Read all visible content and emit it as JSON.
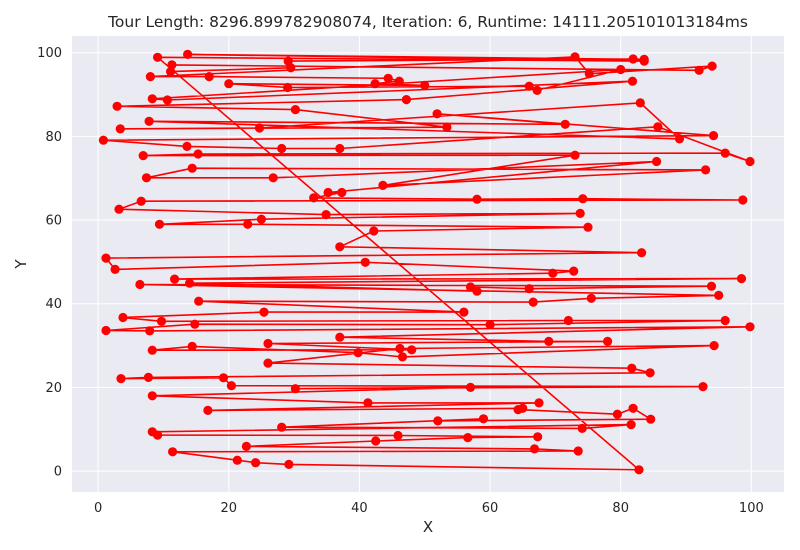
{
  "chart_data": {
    "type": "line",
    "title": "Tour Length: 8296.899782908074, Iteration: 6, Runtime: 14111.205101013184ms",
    "xlabel": "X",
    "ylabel": "Y",
    "xlim": [
      -4,
      105
    ],
    "ylim": [
      -5,
      104
    ],
    "xticks": [
      0,
      20,
      40,
      60,
      80,
      100
    ],
    "yticks": [
      0,
      20,
      40,
      60,
      80,
      100
    ],
    "grid": true,
    "background": "#eaeaf2",
    "series": [
      {
        "color": "#ff0000",
        "marker": "circle",
        "points": [
          [
            9.1,
            98.9
          ],
          [
            83.6,
            98.0
          ],
          [
            13.7,
            99.6
          ],
          [
            83.6,
            98.4
          ],
          [
            81.9,
            98.5
          ],
          [
            29.1,
            98.0
          ],
          [
            29.5,
            96.4
          ],
          [
            11.1,
            95.5
          ],
          [
            11.3,
            97.1
          ],
          [
            92.0,
            95.8
          ],
          [
            94.0,
            96.8
          ],
          [
            75.2,
            95.0
          ],
          [
            73.0,
            99.0
          ],
          [
            8.0,
            94.3
          ],
          [
            17.0,
            94.3
          ],
          [
            44.4,
            93.9
          ],
          [
            46.1,
            93.2
          ],
          [
            42.4,
            92.6
          ],
          [
            50.0,
            92.2
          ],
          [
            20.0,
            92.6
          ],
          [
            29.0,
            91.7
          ],
          [
            66.0,
            92.0
          ],
          [
            67.2,
            91.0
          ],
          [
            80.0,
            96.0
          ],
          [
            8.3,
            89.0
          ],
          [
            10.6,
            88.7
          ],
          [
            81.8,
            93.2
          ],
          [
            47.2,
            88.8
          ],
          [
            2.9,
            87.2
          ],
          [
            30.2,
            86.4
          ],
          [
            53.4,
            82.2
          ],
          [
            3.4,
            81.8
          ],
          [
            24.7,
            82.0
          ],
          [
            83.0,
            88.0
          ],
          [
            89.0,
            79.4
          ],
          [
            7.8,
            83.6
          ],
          [
            71.5,
            82.9
          ],
          [
            51.9,
            85.4
          ],
          [
            94.2,
            80.2
          ],
          [
            0.8,
            79.1
          ],
          [
            13.6,
            77.6
          ],
          [
            28.1,
            77.1
          ],
          [
            37.0,
            77.1
          ],
          [
            85.7,
            82.3
          ],
          [
            99.8,
            74.0
          ],
          [
            96.0,
            76.0
          ],
          [
            15.3,
            75.8
          ],
          [
            6.9,
            75.4
          ],
          [
            73.0,
            75.5
          ],
          [
            43.6,
            68.3
          ],
          [
            93.0,
            72.0
          ],
          [
            14.4,
            72.4
          ],
          [
            7.4,
            70.1
          ],
          [
            26.8,
            70.1
          ],
          [
            85.5,
            74.0
          ],
          [
            35.2,
            66.6
          ],
          [
            37.3,
            66.6
          ],
          [
            33.0,
            65.3
          ],
          [
            58.0,
            65.0
          ],
          [
            74.2,
            65.1
          ],
          [
            98.7,
            64.8
          ],
          [
            6.6,
            64.5
          ],
          [
            3.2,
            62.6
          ],
          [
            34.9,
            61.3
          ],
          [
            73.8,
            61.6
          ],
          [
            25.0,
            60.2
          ],
          [
            9.4,
            59.0
          ],
          [
            22.9,
            59.0
          ],
          [
            75.0,
            58.3
          ],
          [
            42.2,
            57.4
          ],
          [
            37.0,
            53.6
          ],
          [
            83.2,
            52.2
          ],
          [
            1.2,
            50.9
          ],
          [
            2.6,
            48.2
          ],
          [
            40.9,
            49.9
          ],
          [
            72.8,
            47.8
          ],
          [
            69.6,
            47.3
          ],
          [
            11.7,
            45.9
          ],
          [
            98.5,
            46.0
          ],
          [
            14.0,
            44.9
          ],
          [
            58.0,
            43.0
          ],
          [
            57.0,
            44.0
          ],
          [
            66.0,
            43.6
          ],
          [
            93.9,
            44.2
          ],
          [
            6.4,
            44.6
          ],
          [
            95.0,
            42.0
          ],
          [
            75.5,
            41.3
          ],
          [
            66.6,
            40.4
          ],
          [
            15.4,
            40.6
          ],
          [
            56.0,
            38.0
          ],
          [
            25.4,
            38.0
          ],
          [
            3.8,
            36.7
          ],
          [
            9.7,
            35.8
          ],
          [
            72.0,
            36.0
          ],
          [
            96.0,
            36.0
          ],
          [
            60.0,
            35.0
          ],
          [
            14.8,
            35.1
          ],
          [
            1.2,
            33.6
          ],
          [
            7.9,
            33.5
          ],
          [
            99.8,
            34.5
          ],
          [
            37.0,
            32.0
          ],
          [
            69.0,
            31.0
          ],
          [
            78.0,
            31.0
          ],
          [
            26.0,
            30.5
          ],
          [
            48.0,
            29.0
          ],
          [
            8.3,
            28.9
          ],
          [
            14.4,
            29.8
          ],
          [
            39.8,
            28.3
          ],
          [
            46.6,
            27.3
          ],
          [
            94.3,
            30.0
          ],
          [
            46.2,
            29.3
          ],
          [
            26.0,
            25.8
          ],
          [
            81.7,
            24.6
          ],
          [
            84.5,
            23.5
          ],
          [
            7.7,
            22.4
          ],
          [
            3.5,
            22.1
          ],
          [
            19.2,
            22.3
          ],
          [
            20.4,
            20.4
          ],
          [
            92.6,
            20.2
          ],
          [
            30.2,
            19.7
          ],
          [
            57.0,
            20.0
          ],
          [
            8.3,
            18.0
          ],
          [
            41.3,
            16.3
          ],
          [
            67.5,
            16.3
          ],
          [
            16.8,
            14.5
          ],
          [
            65.0,
            15.0
          ],
          [
            64.3,
            14.7
          ],
          [
            79.5,
            13.6
          ],
          [
            81.9,
            15.0
          ],
          [
            84.6,
            12.4
          ],
          [
            52.0,
            12.0
          ],
          [
            59.0,
            12.5
          ],
          [
            28.1,
            10.5
          ],
          [
            74.1,
            10.2
          ],
          [
            81.6,
            11.1
          ],
          [
            8.3,
            9.4
          ],
          [
            9.1,
            8.6
          ],
          [
            45.9,
            8.5
          ],
          [
            67.3,
            8.2
          ],
          [
            56.6,
            8.0
          ],
          [
            42.5,
            7.2
          ],
          [
            22.7,
            5.9
          ],
          [
            66.8,
            5.3
          ],
          [
            73.5,
            4.8
          ],
          [
            11.4,
            4.6
          ],
          [
            21.3,
            2.6
          ],
          [
            24.1,
            2.0
          ],
          [
            29.2,
            1.6
          ],
          [
            82.8,
            0.3
          ]
        ]
      }
    ]
  }
}
